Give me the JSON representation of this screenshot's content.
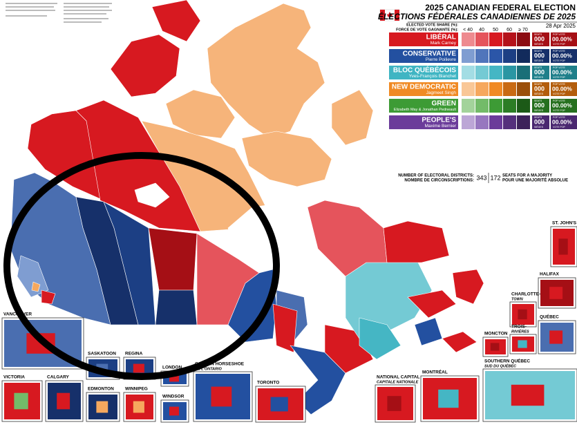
{
  "header": {
    "title": "2025 CANADIAN FEDERAL ELECTION",
    "subtitle": "ÉLECTIONS FÉDÉRALES CANADIENNES DE 2025",
    "date": "28 Apr 2025"
  },
  "legend": {
    "share_label_en": "ELECTED VOTE SHARE (%):",
    "share_label_fr": "FORCE DE VOTE GAGNANTE (%):",
    "scale": [
      "< 40",
      "40",
      "50",
      "60",
      "≥ 70"
    ],
    "seats_label_en": "SEATS",
    "seats_label_fr": "SIÈGES",
    "vote_label_en": "POP VOTE",
    "vote_label_fr": "VOTE POP",
    "parties": [
      {
        "name": "LIBÉRAL",
        "leader": "Mark Carney",
        "seats": "000",
        "pop_vote": "00.00%",
        "color": "#d71920",
        "dark": "#a50f15",
        "shades": [
          "#ee8a8f",
          "#e5545c",
          "#d71920",
          "#b5121a",
          "#8c0c12"
        ]
      },
      {
        "name": "CONSERVATIVE",
        "leader": "Pierre Poilievre",
        "seats": "000",
        "pop_vote": "00.00%",
        "color": "#2350a0",
        "dark": "#16306a",
        "shades": [
          "#7f9dd1",
          "#5075bb",
          "#2b56a8",
          "#1c3f84",
          "#122b5c"
        ]
      },
      {
        "name": "BLOC QUÉBÉCOIS",
        "leader": "Yves-François Blanchet",
        "seats": "000",
        "pop_vote": "00.00%",
        "color": "#3fb5c3",
        "dark": "#1f7f8a",
        "shades": [
          "#a3dde4",
          "#74cad4",
          "#45b6c4",
          "#2a96a3",
          "#1a6f78"
        ]
      },
      {
        "name": "NEW DEMOCRATIC",
        "leader": "Jagmeet Singh",
        "seats": "000",
        "pop_vote": "00.00%",
        "color": "#f08a24",
        "dark": "#b35d0c",
        "shades": [
          "#f9c797",
          "#f6a85e",
          "#f08a24",
          "#c96a12",
          "#9b4f0a"
        ]
      },
      {
        "name": "GREEN",
        "leader": "Elizabeth May & Jonathan Pedneault",
        "seats": "000",
        "pop_vote": "00.00%",
        "color": "#3d9b35",
        "dark": "#26701f",
        "shades": [
          "#a3d39b",
          "#73bb69",
          "#3d9b35",
          "#2c7d25",
          "#1c5a17"
        ]
      },
      {
        "name": "PEOPLE'S",
        "leader": "Maxime Bernier",
        "seats": "000",
        "pop_vote": "00.00%",
        "color": "#6b3c9a",
        "dark": "#4a2870",
        "shades": [
          "#bca6d6",
          "#9777bf",
          "#6b3c9a",
          "#55307c",
          "#3d225a"
        ]
      }
    ]
  },
  "districts": {
    "label_en": "NUMBER OF ELECTORAL DISTRICTS:",
    "label_fr": "NOMBRE DE CIRCONSCRIPTIONS:",
    "total": 343,
    "majority": 172,
    "majority_label_en": "SEATS FOR A MAJORITY",
    "majority_label_fr": "POUR UNE MAJORITÉ ABSOLUE"
  },
  "insets": [
    {
      "label": "ST. JOHN'S"
    },
    {
      "label": "HALIFAX"
    },
    {
      "label": "CHARLOTTE-",
      "sublabel": "TOWN"
    },
    {
      "label": "TROIS-",
      "sublabel": "RIVIÈRES"
    },
    {
      "label": "QUÉBEC"
    },
    {
      "label": "MONCTON"
    },
    {
      "label": "SOUTHERN QUÉBEC",
      "sublabel": "SUD DU QUÉBEC"
    },
    {
      "label": "NATIONAL CAPITAL",
      "sublabel": "CAPITALE NATIONALE"
    },
    {
      "label": "MONTRÉAL"
    },
    {
      "label": "TORONTO"
    },
    {
      "label": "GOLDEN HORSESHOE",
      "sublabel": "DE L'ONTARIO"
    },
    {
      "label": "LONDON"
    },
    {
      "label": "WINDSOR"
    },
    {
      "label": "WINNIPEG"
    },
    {
      "label": "REGINA"
    },
    {
      "label": "SASKATOON"
    },
    {
      "label": "EDMONTON"
    },
    {
      "label": "CALGARY"
    },
    {
      "label": "VICTORIA"
    },
    {
      "label": "VANCOUVER"
    }
  ]
}
